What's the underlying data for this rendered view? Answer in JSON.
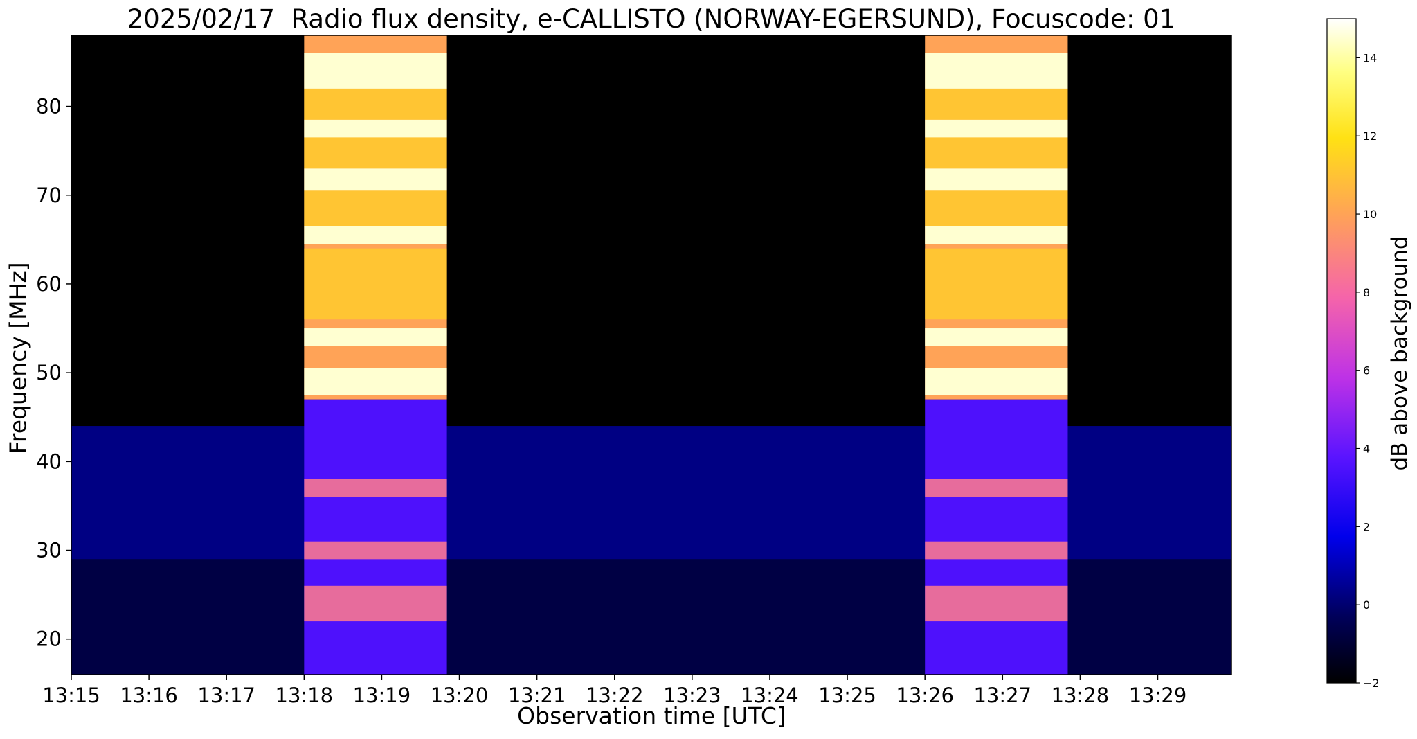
{
  "chart_data": {
    "type": "heatmap",
    "title": "2025/02/17  Radio flux density, e-CALLISTO (NORWAY-EGERSUND), Focuscode: 01",
    "xlabel": "Observation time [UTC]",
    "ylabel": "Frequency [MHz]",
    "x_ticks": [
      "13:15",
      "13:16",
      "13:17",
      "13:18",
      "13:19",
      "13:20",
      "13:21",
      "13:22",
      "13:23",
      "13:24",
      "13:25",
      "13:26",
      "13:27",
      "13:28",
      "13:29"
    ],
    "x_range_minutes": [
      0,
      14.95
    ],
    "y_ticks": [
      20,
      30,
      40,
      50,
      60,
      70,
      80
    ],
    "ylim": [
      16,
      88
    ],
    "colormap": "gnuplot2",
    "colorbar": {
      "label": "dB above background",
      "range": [
        -2,
        15
      ],
      "ticks": [
        -2,
        0,
        2,
        4,
        6,
        8,
        10,
        12,
        14
      ]
    },
    "bright_bursts_minutes": [
      [
        3.0,
        4.84
      ],
      [
        11.0,
        12.84
      ]
    ],
    "burst_bright_bands_mhz": [
      [
        47.5,
        50.5
      ],
      [
        53.0,
        55.0
      ],
      [
        64.5,
        66.5
      ],
      [
        70.5,
        73.0
      ],
      [
        76.5,
        78.5
      ],
      [
        82.0,
        86.0
      ]
    ],
    "background_band_mhz": [
      29,
      44
    ],
    "grid": false
  }
}
